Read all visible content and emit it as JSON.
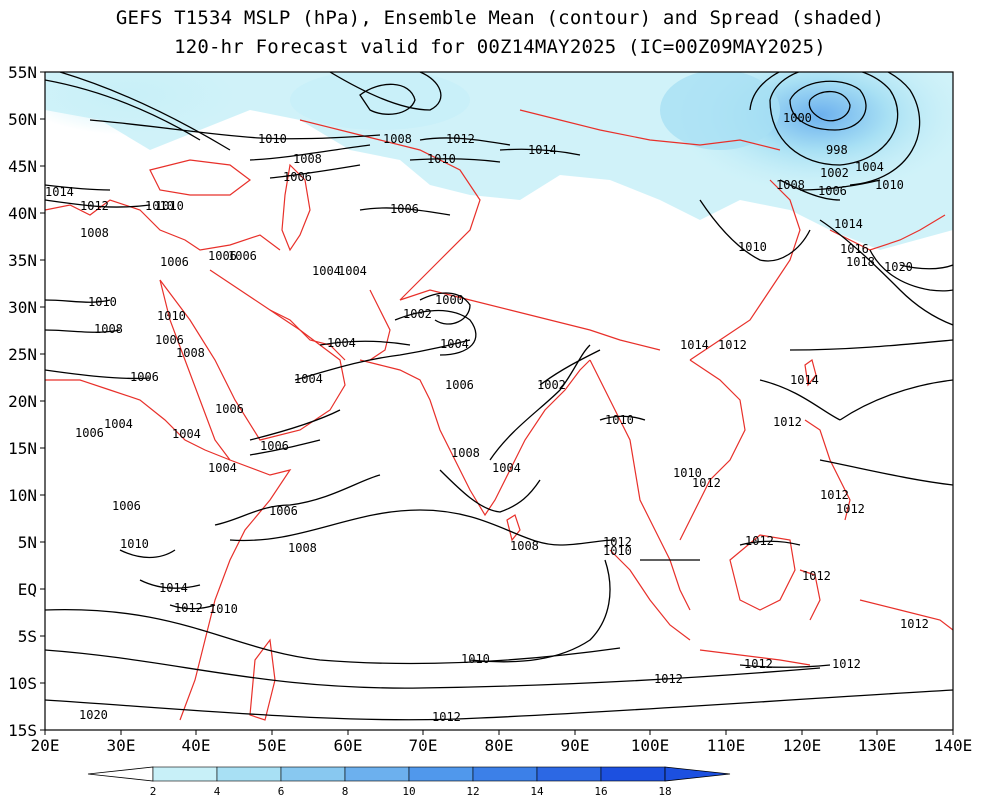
{
  "title": {
    "line1": "GEFS T1534 MSLP (hPa), Ensemble Mean (contour) and Spread (shaded)",
    "line2": "120-hr Forecast valid for 00Z14MAY2025 (IC=00Z09MAY2025)"
  },
  "map": {
    "lat_ticks": [
      "55N",
      "50N",
      "45N",
      "40N",
      "35N",
      "30N",
      "25N",
      "20N",
      "15N",
      "10N",
      "5N",
      "EQ",
      "5S",
      "10S",
      "15S"
    ],
    "lon_ticks": [
      "20E",
      "30E",
      "40E",
      "50E",
      "60E",
      "70E",
      "80E",
      "90E",
      "100E",
      "110E",
      "120E",
      "130E",
      "140E"
    ],
    "contour_color": "#000000",
    "coastline_color": "#e8302a",
    "spread_colors": [
      "#ffffff",
      "#c8f0f8",
      "#a8e0f4",
      "#88c8f0",
      "#6cb0ee",
      "#5098ec",
      "#3c80e8",
      "#2c68e4",
      "#1c50e0"
    ]
  },
  "contour_labels": [
    {
      "text": "1010"
    },
    {
      "text": "1008"
    },
    {
      "text": "1006"
    },
    {
      "text": "1014"
    },
    {
      "text": "1012"
    },
    {
      "text": "1010"
    },
    {
      "text": "1008"
    },
    {
      "text": "1006"
    },
    {
      "text": "1010"
    },
    {
      "text": "1008"
    },
    {
      "text": "1012"
    },
    {
      "text": "1010"
    },
    {
      "text": "1014"
    },
    {
      "text": "1006"
    },
    {
      "text": "1000"
    },
    {
      "text": "998"
    },
    {
      "text": "1002"
    },
    {
      "text": "1004"
    },
    {
      "text": "1008"
    },
    {
      "text": "1006"
    },
    {
      "text": "1010"
    },
    {
      "text": "1014"
    },
    {
      "text": "1016"
    },
    {
      "text": "1018"
    },
    {
      "text": "1020"
    },
    {
      "text": "1010"
    },
    {
      "text": "1006"
    },
    {
      "text": "1006"
    },
    {
      "text": "1004"
    },
    {
      "text": "1004"
    },
    {
      "text": "1000"
    },
    {
      "text": "1002"
    },
    {
      "text": "1004"
    },
    {
      "text": "1004"
    },
    {
      "text": "1004"
    },
    {
      "text": "1006"
    },
    {
      "text": "1002"
    },
    {
      "text": "1014"
    },
    {
      "text": "1012"
    },
    {
      "text": "1014"
    },
    {
      "text": "1008"
    },
    {
      "text": "1006"
    },
    {
      "text": "1006"
    },
    {
      "text": "1008"
    },
    {
      "text": "1006"
    },
    {
      "text": "1004"
    },
    {
      "text": "1004"
    },
    {
      "text": "1006"
    },
    {
      "text": "1006"
    },
    {
      "text": "1010"
    },
    {
      "text": "1010"
    },
    {
      "text": "1004"
    },
    {
      "text": "1008"
    },
    {
      "text": "1004"
    },
    {
      "text": "1006"
    },
    {
      "text": "1006"
    },
    {
      "text": "1008"
    },
    {
      "text": "1008"
    },
    {
      "text": "1012"
    },
    {
      "text": "1010"
    },
    {
      "text": "1012"
    },
    {
      "text": "1012"
    },
    {
      "text": "1010"
    },
    {
      "text": "1012"
    },
    {
      "text": "1012"
    },
    {
      "text": "1012"
    },
    {
      "text": "1012"
    },
    {
      "text": "1012"
    },
    {
      "text": "1012"
    },
    {
      "text": "1012"
    },
    {
      "text": "1010"
    },
    {
      "text": "1014"
    },
    {
      "text": "1012"
    },
    {
      "text": "1010"
    },
    {
      "text": "1010"
    },
    {
      "text": "1012"
    },
    {
      "text": "1020"
    },
    {
      "text": "1010"
    },
    {
      "text": "1012"
    }
  ],
  "colorbar": {
    "labels": [
      "2",
      "4",
      "6",
      "8",
      "10",
      "12",
      "14",
      "16",
      "18"
    ]
  }
}
